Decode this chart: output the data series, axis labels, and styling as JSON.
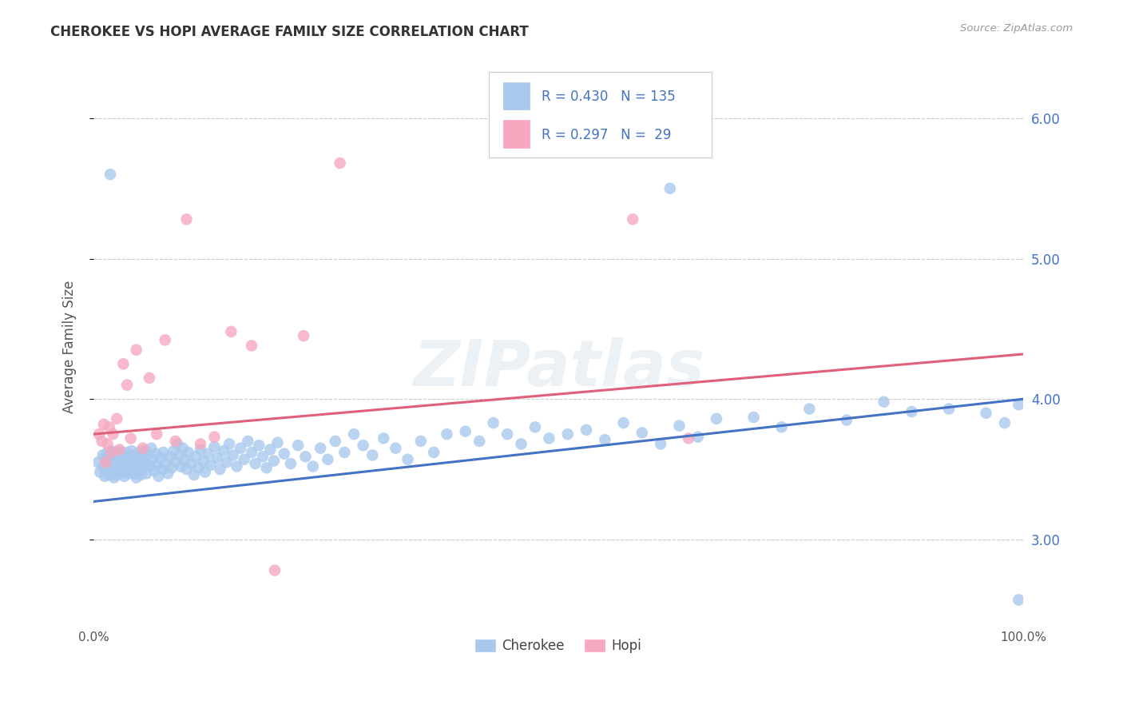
{
  "title": "CHEROKEE VS HOPI AVERAGE FAMILY SIZE CORRELATION CHART",
  "source": "Source: ZipAtlas.com",
  "ylabel": "Average Family Size",
  "ylim": [
    2.4,
    6.35
  ],
  "xlim": [
    0.0,
    1.0
  ],
  "yticks": [
    3.0,
    4.0,
    5.0,
    6.0
  ],
  "cherokee_color": "#A8C8EE",
  "hopi_color": "#F5A8BE",
  "cherokee_line_color": "#4472C4",
  "hopi_line_color": "#E0607A",
  "R_cherokee": 0.43,
  "N_cherokee": 135,
  "R_hopi": 0.297,
  "N_hopi": 29,
  "background_color": "#FFFFFF",
  "grid_color": "#CCCCCC",
  "cherokee_line_y0": 3.27,
  "cherokee_line_y1": 4.0,
  "hopi_line_y0": 3.75,
  "hopi_line_y1": 4.32
}
